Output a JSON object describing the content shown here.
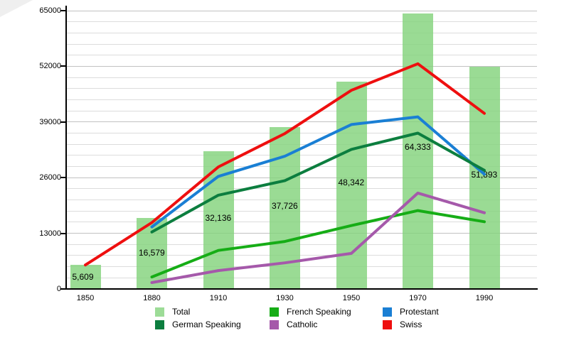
{
  "chart_data": {
    "type": "bar+line",
    "title": "",
    "categories": [
      "1850",
      "1880",
      "1910",
      "1930",
      "1950",
      "1970",
      "1990"
    ],
    "y_axis": {
      "ticks": [
        0,
        13000,
        26000,
        39000,
        52000,
        65000
      ],
      "tick_labels": [
        "0",
        "13000",
        "26000",
        "39000",
        "52000",
        "65000"
      ],
      "minor_step": 2600,
      "ylim": [
        0,
        65000
      ],
      "grid": "horizontal"
    },
    "bars": {
      "name": "Total",
      "color": "#9ddc97",
      "values": [
        5609,
        16579,
        32136,
        37726,
        48342,
        64333,
        51893
      ],
      "labels": [
        "5,609",
        "16,579",
        "32,136",
        "37,726",
        "48,342",
        "64,333",
        "51,893"
      ]
    },
    "series": [
      {
        "name": "French Speaking",
        "color": "#16ad16",
        "start_index": 1,
        "values": [
          2800,
          9000,
          11100,
          14800,
          18300,
          15700
        ]
      },
      {
        "name": "Protestant",
        "color": "#1a7fd4",
        "start_index": 1,
        "values": [
          14500,
          26300,
          31000,
          38400,
          40200,
          26800
        ]
      },
      {
        "name": "German Speaking",
        "color": "#0c7e3f",
        "start_index": 1,
        "values": [
          13300,
          21900,
          25300,
          32600,
          36400,
          27700
        ]
      },
      {
        "name": "Catholic",
        "color": "#a559aa",
        "start_index": 1,
        "values": [
          1500,
          4300,
          6100,
          8300,
          22400,
          17800
        ]
      },
      {
        "name": "Swiss",
        "color": "#ee0f0f",
        "start_index": 0,
        "values": [
          5609,
          15500,
          28500,
          36300,
          46400,
          52600,
          41000
        ]
      }
    ],
    "legend": {
      "position": "bottom",
      "items": [
        {
          "label": "Total",
          "color": "#9ddc97"
        },
        {
          "label": "French Speaking",
          "color": "#16ad16"
        },
        {
          "label": "Protestant",
          "color": "#1a7fd4"
        },
        {
          "label": "German Speaking",
          "color": "#0c7e3f"
        },
        {
          "label": "Catholic",
          "color": "#a559aa"
        },
        {
          "label": "Swiss",
          "color": "#ee0f0f"
        }
      ]
    }
  }
}
